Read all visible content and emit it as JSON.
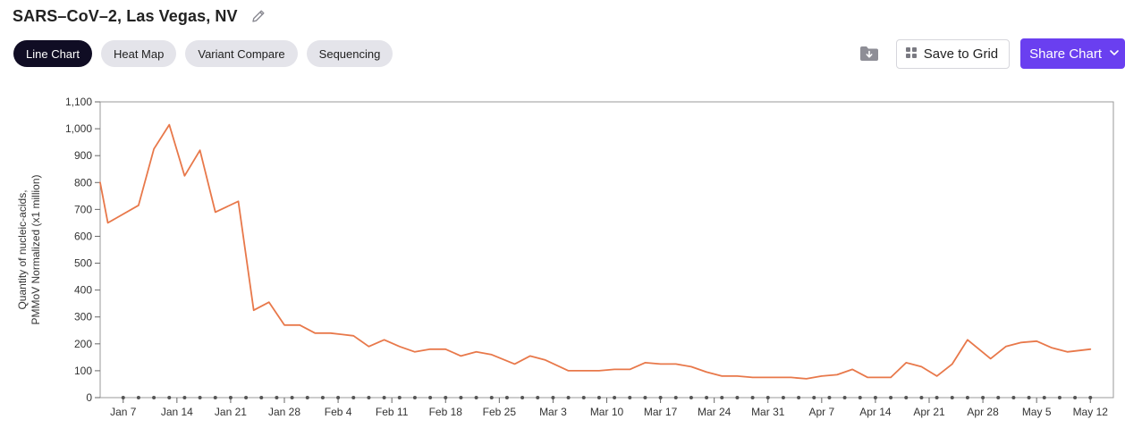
{
  "header": {
    "title": "SARS–CoV–2, Las Vegas, NV",
    "edit_icon": "pencil-icon"
  },
  "tabs": [
    {
      "label": "Line Chart",
      "active": true
    },
    {
      "label": "Heat Map",
      "active": false
    },
    {
      "label": "Variant Compare",
      "active": false
    },
    {
      "label": "Sequencing",
      "active": false
    }
  ],
  "actions": {
    "download_icon": "folder-download-icon",
    "save_to_grid_label": "Save to Grid",
    "save_icon": "grid-icon",
    "share_label": "Share Chart",
    "share_icon": "chevron-down-icon"
  },
  "colors": {
    "line": "#e8784a",
    "active_tab_bg": "#100d24",
    "tab_bg": "#e4e4ea",
    "accent": "#6a3ff0",
    "marker": "#555555"
  },
  "chart_data": {
    "type": "line",
    "title": "",
    "xlabel": "",
    "ylabel": "Quantity of nucleic-acids, PMMoV Normalized (x1 million)",
    "ylim": [
      0,
      1100
    ],
    "yticks": [
      0,
      100,
      200,
      300,
      400,
      500,
      600,
      700,
      800,
      900,
      1000,
      1100
    ],
    "ytick_labels": [
      "0",
      "100",
      "200",
      "300",
      "400",
      "500",
      "600",
      "700",
      "800",
      "900",
      "1,000",
      "1,100"
    ],
    "xlim": [
      "2024-01-04",
      "2024-05-15"
    ],
    "xticks": [
      "2024-01-07",
      "2024-01-14",
      "2024-01-21",
      "2024-01-28",
      "2024-02-04",
      "2024-02-11",
      "2024-02-18",
      "2024-02-25",
      "2024-03-03",
      "2024-03-10",
      "2024-03-17",
      "2024-03-24",
      "2024-03-31",
      "2024-04-07",
      "2024-04-14",
      "2024-04-21",
      "2024-04-28",
      "2024-05-05",
      "2024-05-12"
    ],
    "xtick_labels": [
      "Jan 7",
      "Jan 14",
      "Jan 21",
      "Jan 28",
      "Feb 4",
      "Feb 11",
      "Feb 18",
      "Feb 25",
      "Mar 3",
      "Mar 10",
      "Mar 17",
      "Mar 24",
      "Mar 31",
      "Apr 7",
      "Apr 14",
      "Apr 21",
      "Apr 28",
      "May 5",
      "May 12"
    ],
    "grid": false,
    "series": [
      {
        "x": [
          "2024-01-04",
          "2024-01-05",
          "2024-01-09",
          "2024-01-11",
          "2024-01-13",
          "2024-01-15",
          "2024-01-17",
          "2024-01-19",
          "2024-01-22",
          "2024-01-24",
          "2024-01-26",
          "2024-01-28",
          "2024-01-30",
          "2024-02-01",
          "2024-02-03",
          "2024-02-06",
          "2024-02-08",
          "2024-02-10",
          "2024-02-12",
          "2024-02-14",
          "2024-02-16",
          "2024-02-18",
          "2024-02-20",
          "2024-02-22",
          "2024-02-24",
          "2024-02-27",
          "2024-02-29",
          "2024-03-02",
          "2024-03-05",
          "2024-03-07",
          "2024-03-09",
          "2024-03-11",
          "2024-03-13",
          "2024-03-15",
          "2024-03-17",
          "2024-03-19",
          "2024-03-21",
          "2024-03-23",
          "2024-03-25",
          "2024-03-27",
          "2024-03-29",
          "2024-04-01",
          "2024-04-03",
          "2024-04-05",
          "2024-04-07",
          "2024-04-09",
          "2024-04-11",
          "2024-04-13",
          "2024-04-16",
          "2024-04-18",
          "2024-04-20",
          "2024-04-22",
          "2024-04-24",
          "2024-04-26",
          "2024-04-29",
          "2024-05-01",
          "2024-05-03",
          "2024-05-05",
          "2024-05-07",
          "2024-05-09",
          "2024-05-12"
        ],
        "y": [
          800,
          650,
          715,
          925,
          1015,
          825,
          920,
          690,
          730,
          325,
          355,
          270,
          270,
          240,
          240,
          230,
          190,
          215,
          190,
          170,
          180,
          180,
          155,
          170,
          160,
          125,
          155,
          140,
          100,
          100,
          100,
          105,
          105,
          130,
          125,
          125,
          115,
          95,
          80,
          80,
          75,
          75,
          75,
          70,
          80,
          85,
          105,
          75,
          75,
          130,
          115,
          80,
          125,
          215,
          145,
          190,
          205,
          210,
          185,
          170,
          180
        ]
      }
    ]
  }
}
